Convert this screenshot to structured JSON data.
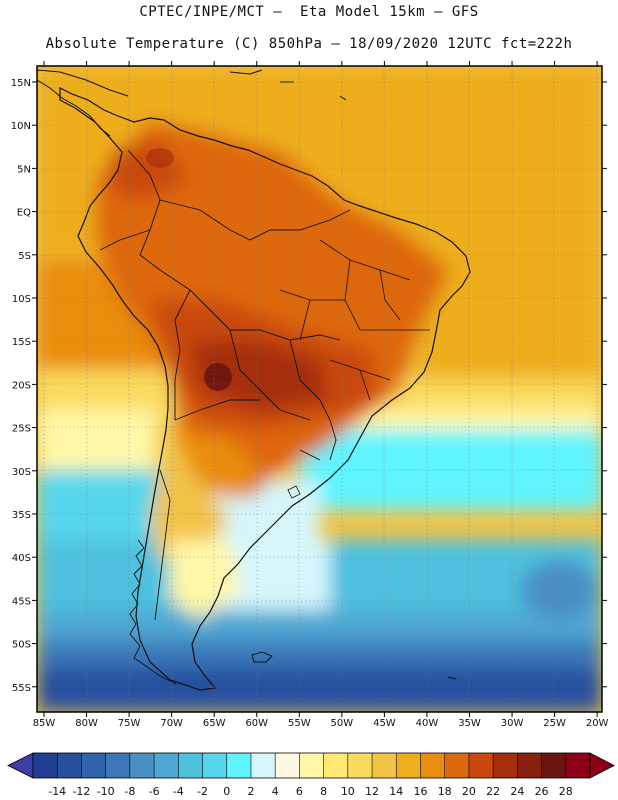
{
  "header": {
    "line1": "CPTEC/INPE/MCT –  Eta Model 15km – GFS",
    "line2": "Absolute Temperature (C) 850hPa – 18/09/2020 12UTC fct=222h"
  },
  "lat_labels": [
    "15N",
    "10N",
    "5N",
    "EQ",
    "5S",
    "10S",
    "15S",
    "20S",
    "25S",
    "30S",
    "35S",
    "40S",
    "45S",
    "50S",
    "55S"
  ],
  "lon_labels": [
    "85W",
    "80W",
    "75W",
    "70W",
    "65W",
    "60W",
    "55W",
    "50W",
    "45W",
    "40W",
    "35W",
    "30W",
    "25W",
    "20W"
  ],
  "colorbar": {
    "ticks": [
      "-14",
      "-12",
      "-10",
      "-8",
      "-6",
      "-4",
      "-2",
      "0",
      "2",
      "4",
      "6",
      "8",
      "10",
      "12",
      "14",
      "16",
      "18",
      "20",
      "22",
      "24",
      "26",
      "28"
    ],
    "colors": [
      "#1e3f94",
      "#25509f",
      "#2f62ac",
      "#3b78b8",
      "#4a8fc6",
      "#4fa7d3",
      "#4ec1df",
      "#56d6ec",
      "#5ff4ff",
      "#d6f6fb",
      "#fff8e2",
      "#fff7a8",
      "#ffe873",
      "#fadb5e",
      "#f2c347",
      "#eeae1d",
      "#e98d0f",
      "#de680d",
      "#c9480f",
      "#a52e0b",
      "#87200c",
      "#6b1510",
      "#8b0018"
    ],
    "low_arrow": "#3b3ea2",
    "high_arrow": "#8b0018"
  }
}
